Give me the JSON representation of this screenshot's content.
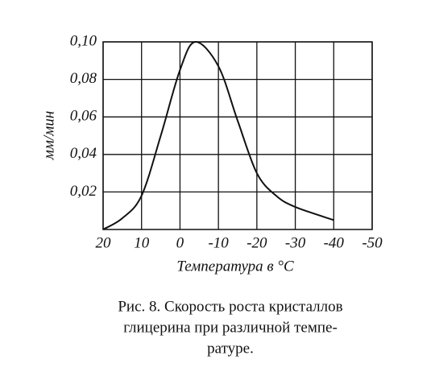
{
  "chart_data": {
    "type": "line",
    "x_label": "Температура в °С",
    "y_label": "мм/мин",
    "caption": [
      "Рис. 8. Скорость роста кристаллов",
      "глицерина при различной темпе-",
      "ратуре."
    ],
    "x": [
      20,
      15,
      10,
      5,
      0,
      -4,
      -10,
      -15,
      -20,
      -25,
      -30,
      -40
    ],
    "values": [
      0,
      0.006,
      0.018,
      0.05,
      0.085,
      0.1,
      0.087,
      0.058,
      0.03,
      0.018,
      0.012,
      0.005
    ],
    "color": "#111111",
    "xlim": [
      20,
      -50
    ],
    "ylim": [
      0,
      0.1
    ],
    "xticks": [
      20,
      10,
      0,
      -10,
      -20,
      -30,
      -40,
      -50
    ],
    "yticks": [
      {
        "value": 0.02,
        "label": "0,02"
      },
      {
        "value": 0.04,
        "label": "0,04"
      },
      {
        "value": 0.06,
        "label": "0,06"
      },
      {
        "value": 0.08,
        "label": "0,08"
      },
      {
        "value": 0.1,
        "label": "0,10"
      }
    ],
    "grid": true
  }
}
